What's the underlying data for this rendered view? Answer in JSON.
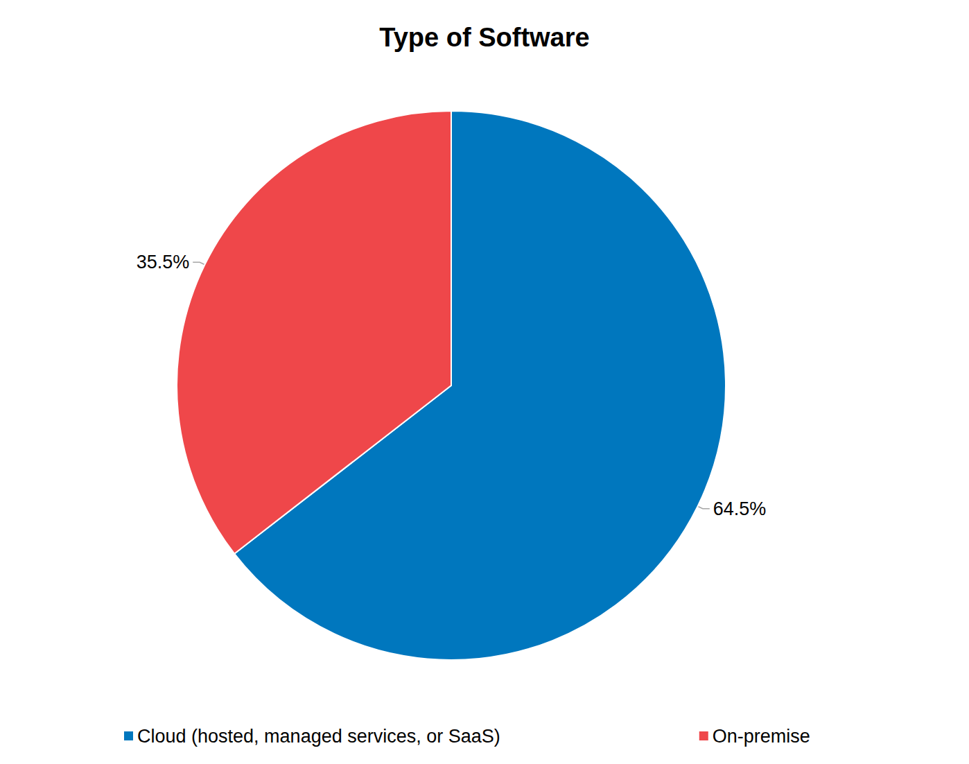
{
  "chart_data": {
    "type": "pie",
    "title": "Type of Software",
    "categories": [
      "Cloud (hosted, managed services, or SaaS)",
      "On-premise"
    ],
    "values": [
      64.5,
      35.5
    ],
    "value_labels": [
      "64.5%",
      "35.5%"
    ],
    "colors": [
      "#0077be",
      "#ef474a"
    ],
    "data_labels": true,
    "legend": "bottom"
  }
}
